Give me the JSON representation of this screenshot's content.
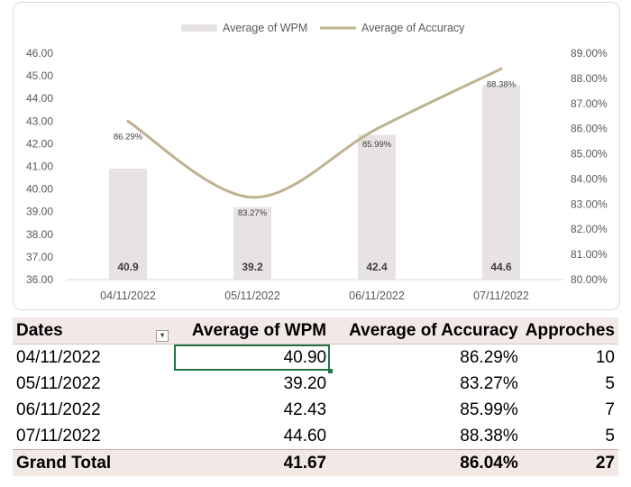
{
  "chart_data": {
    "type": "bar",
    "categories": [
      "04/11/2022",
      "05/11/2022",
      "06/11/2022",
      "07/11/2022"
    ],
    "series": [
      {
        "name": "Average of WPM",
        "type": "bar",
        "axis": "left",
        "values": [
          40.9,
          39.2,
          42.4,
          44.6
        ],
        "labels": [
          "40.9",
          "39.2",
          "42.4",
          "44.6"
        ]
      },
      {
        "name": "Average of Accuracy",
        "type": "line",
        "axis": "right",
        "values": [
          86.29,
          83.27,
          85.99,
          88.38
        ],
        "labels": [
          "86.29%",
          "83.27%",
          "85.99%",
          "88.38%"
        ]
      }
    ],
    "y_left": {
      "min": 36,
      "max": 46,
      "ticks": [
        "36.00",
        "37.00",
        "38.00",
        "39.00",
        "40.00",
        "41.00",
        "42.00",
        "43.00",
        "44.00",
        "45.00",
        "46.00"
      ]
    },
    "y_right": {
      "min": 80,
      "max": 89,
      "ticks": [
        "80.00%",
        "81.00%",
        "82.00%",
        "83.00%",
        "84.00%",
        "85.00%",
        "86.00%",
        "87.00%",
        "88.00%",
        "89.00%"
      ]
    },
    "legend": "top",
    "grid": false,
    "colors": {
      "bar": "#e8e3e3",
      "line": "#bfb28f",
      "axis_text": "#595959"
    }
  },
  "table": {
    "headers": [
      "Dates",
      "Average of WPM",
      "Average of Accuracy",
      "Approches"
    ],
    "rows": [
      [
        "04/11/2022",
        "40.90",
        "86.29%",
        "10"
      ],
      [
        "05/11/2022",
        "39.20",
        "83.27%",
        "5"
      ],
      [
        "06/11/2022",
        "42.43",
        "85.99%",
        "7"
      ],
      [
        "07/11/2022",
        "44.60",
        "88.38%",
        "5"
      ]
    ],
    "total": [
      "Grand Total",
      "41.67",
      "86.04%",
      "27"
    ],
    "filter_icon": "dropdown-filter-icon"
  }
}
